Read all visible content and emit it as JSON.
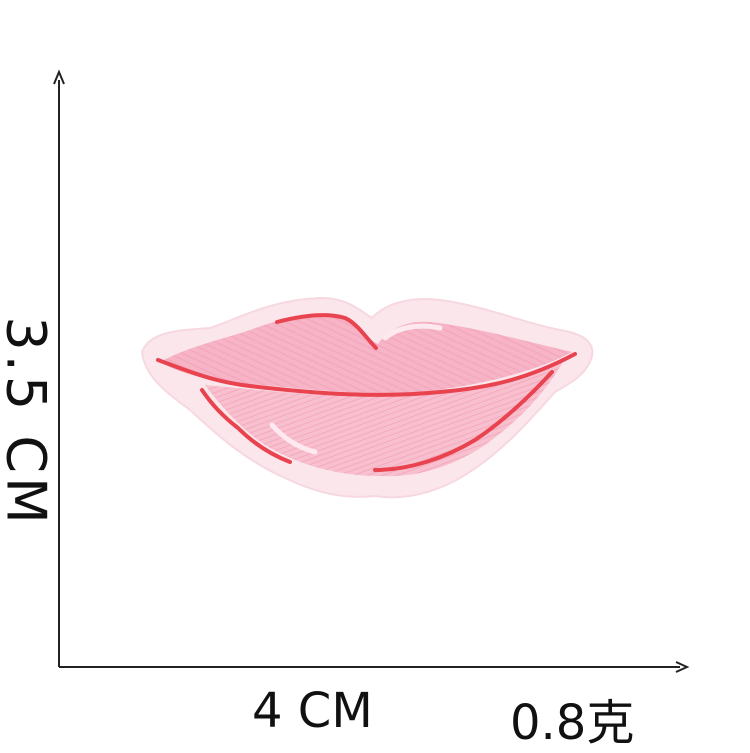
{
  "dimensions": {
    "height_label": "3.5 CM",
    "width_label": "4 CM",
    "weight_label": "0.8克"
  },
  "patch": {
    "subject": "embroidered pink lips patch",
    "colors": {
      "backing": "#fbe6ec",
      "lip_fill": "#f6b4c6",
      "outline_red": "#e8434f",
      "highlight": "#fde9ef"
    }
  },
  "icons": [
    "vertical-axis-arrow",
    "horizontal-axis-arrow"
  ]
}
